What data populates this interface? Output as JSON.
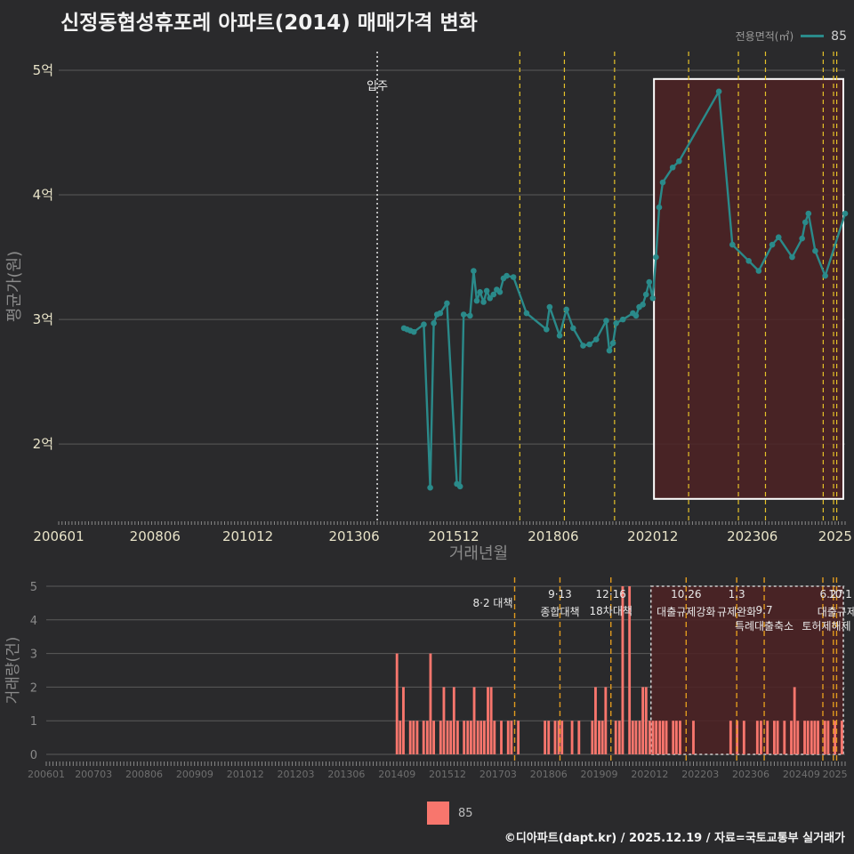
{
  "title": "신정동협성휴포레 아파트(2014) 매매가격 변화",
  "footer": "©디아파트(dapt.kr) / 2025.12.19 / 자료=국토교통부 실거래가",
  "legend": {
    "title": "전용면적(㎡)",
    "series": "85",
    "bottom_label": "85"
  },
  "colors": {
    "line": "#2a8a8a",
    "bar": "#f8766d",
    "background": "#2a2a2c",
    "grid": "#5a5a5a",
    "highlight": "#4e2225",
    "policy": "#e6c229"
  },
  "chart_data": [
    {
      "type": "line",
      "title": "신정동협성휴포레 아파트(2014) 매매가격 변화",
      "xlabel": "거래년월",
      "ylabel": "평균가(원)",
      "x_unit": "year-fraction",
      "xlim": [
        2006.0,
        2025.75
      ],
      "ylim": [
        1.38,
        5.15
      ],
      "x_ticks": [
        {
          "x": 2006.0,
          "label": "200601"
        },
        {
          "x": 2008.42,
          "label": "200806"
        },
        {
          "x": 2010.75,
          "label": "201012"
        },
        {
          "x": 2013.42,
          "label": "201306"
        },
        {
          "x": 2015.92,
          "label": "201512"
        },
        {
          "x": 2018.42,
          "label": "201806"
        },
        {
          "x": 2020.92,
          "label": "202012"
        },
        {
          "x": 2023.42,
          "label": "202306"
        },
        {
          "x": 2025.5,
          "label": "2025"
        }
      ],
      "y_ticks": [
        {
          "y": 2,
          "label": "2억"
        },
        {
          "y": 3,
          "label": "3억"
        },
        {
          "y": 4,
          "label": "4억"
        },
        {
          "y": 5,
          "label": "5억"
        }
      ],
      "move_in": {
        "x": 2014.0,
        "label": "입주"
      },
      "policy_lines": [
        2017.58,
        2018.7,
        2019.96,
        2021.82,
        2023.07,
        2023.75,
        2025.2,
        2025.46,
        2025.54
      ],
      "highlight": {
        "x0": 2020.95,
        "x1": 2025.75,
        "y0": 1.56,
        "y1": 4.93
      },
      "series": [
        {
          "name": "85",
          "x": [
            2014.67,
            2014.75,
            2014.83,
            2014.92,
            2015.17,
            2015.33,
            2015.42,
            2015.5,
            2015.58,
            2015.75,
            2016.0,
            2016.08,
            2016.17,
            2016.33,
            2016.42,
            2016.5,
            2016.58,
            2016.67,
            2016.75,
            2016.83,
            2016.92,
            2017.0,
            2017.08,
            2017.17,
            2017.25,
            2017.42,
            2017.75,
            2018.25,
            2018.33,
            2018.58,
            2018.75,
            2018.92,
            2019.17,
            2019.33,
            2019.5,
            2019.75,
            2019.83,
            2019.92,
            2020.0,
            2020.17,
            2020.42,
            2020.5,
            2020.58,
            2020.67,
            2020.75,
            2020.83,
            2020.92,
            2021.0,
            2021.08,
            2021.17,
            2021.42,
            2021.58,
            2022.58,
            2022.92,
            2023.33,
            2023.58,
            2023.92,
            2024.08,
            2024.42,
            2024.67,
            2024.75,
            2024.83,
            2025.0,
            2025.25,
            2025.75
          ],
          "y": [
            2.93,
            2.92,
            2.91,
            2.9,
            2.96,
            1.65,
            2.97,
            3.04,
            3.05,
            3.13,
            1.68,
            1.66,
            3.04,
            3.03,
            3.39,
            3.15,
            3.22,
            3.14,
            3.23,
            3.17,
            3.2,
            3.24,
            3.22,
            3.33,
            3.35,
            3.34,
            3.05,
            2.92,
            3.1,
            2.87,
            3.08,
            2.93,
            2.79,
            2.8,
            2.84,
            2.99,
            2.75,
            2.81,
            2.97,
            3.0,
            3.05,
            3.03,
            3.1,
            3.12,
            3.2,
            3.3,
            3.17,
            3.5,
            3.9,
            4.1,
            4.22,
            4.27,
            4.83,
            3.6,
            3.47,
            3.39,
            3.6,
            3.66,
            3.5,
            3.65,
            3.78,
            3.85,
            3.55,
            3.35,
            3.85
          ]
        }
      ]
    },
    {
      "type": "bar",
      "xlabel": "",
      "ylabel": "거래량(건)",
      "x_unit": "year-fraction",
      "xlim": [
        2006.0,
        2025.75
      ],
      "ylim": [
        0,
        5
      ],
      "y_ticks": [
        0,
        1,
        2,
        3,
        4,
        5
      ],
      "x_ticks": [
        {
          "x": 2006.0,
          "label": "200601"
        },
        {
          "x": 2007.17,
          "label": "200703"
        },
        {
          "x": 2008.42,
          "label": "200806"
        },
        {
          "x": 2009.67,
          "label": "200909"
        },
        {
          "x": 2010.92,
          "label": "201012"
        },
        {
          "x": 2012.17,
          "label": "201203"
        },
        {
          "x": 2013.42,
          "label": "201306"
        },
        {
          "x": 2014.67,
          "label": "201409"
        },
        {
          "x": 2015.92,
          "label": "201512"
        },
        {
          "x": 2017.17,
          "label": "201703"
        },
        {
          "x": 2018.42,
          "label": "201806"
        },
        {
          "x": 2019.67,
          "label": "201909"
        },
        {
          "x": 2020.92,
          "label": "202012"
        },
        {
          "x": 2022.17,
          "label": "202203"
        },
        {
          "x": 2023.42,
          "label": "202306"
        },
        {
          "x": 2024.67,
          "label": "202409"
        },
        {
          "x": 2025.5,
          "label": "2025"
        }
      ],
      "policies": [
        {
          "x": 2017.58,
          "date": "8·2 대책",
          "name": ""
        },
        {
          "x": 2018.7,
          "date": "9·13",
          "name": "종합대책"
        },
        {
          "x": 2019.96,
          "date": "12·16",
          "name": "18차대책"
        },
        {
          "x": 2021.82,
          "date": "10.26",
          "name": "대출규제강화"
        },
        {
          "x": 2023.07,
          "date": "1.3",
          "name": "규제완화"
        },
        {
          "x": 2023.75,
          "date": "9.7",
          "name": "특례대출축소"
        },
        {
          "x": 2025.2,
          "date": "",
          "name": "토허제해제"
        },
        {
          "x": 2025.46,
          "date": "6.27",
          "name": "대출규제"
        },
        {
          "x": 2025.54,
          "date": "10.1",
          "name": ""
        }
      ],
      "highlight": {
        "x0": 2020.95,
        "x1": 2025.75,
        "y0": 0,
        "y1": 5
      },
      "categories_x": [
        2014.67,
        2014.75,
        2014.83,
        2015.0,
        2015.08,
        2015.17,
        2015.33,
        2015.42,
        2015.5,
        2015.58,
        2015.75,
        2015.83,
        2015.92,
        2016.0,
        2016.08,
        2016.17,
        2016.33,
        2016.42,
        2016.5,
        2016.58,
        2016.67,
        2016.75,
        2016.83,
        2016.92,
        2017.0,
        2017.08,
        2017.25,
        2017.42,
        2017.5,
        2017.67,
        2018.33,
        2018.42,
        2018.58,
        2018.67,
        2018.75,
        2019.0,
        2019.17,
        2019.5,
        2019.58,
        2019.67,
        2019.75,
        2019.83,
        2020.08,
        2020.17,
        2020.25,
        2020.42,
        2020.5,
        2020.58,
        2020.67,
        2020.75,
        2020.83,
        2020.92,
        2021.0,
        2021.08,
        2021.17,
        2021.25,
        2021.33,
        2021.5,
        2021.58,
        2021.67,
        2022.0,
        2022.92,
        2023.08,
        2023.25,
        2023.58,
        2023.67,
        2023.83,
        2024.0,
        2024.08,
        2024.25,
        2024.42,
        2024.5,
        2024.58,
        2024.75,
        2024.83,
        2024.92,
        2025.0,
        2025.08,
        2025.25,
        2025.33,
        2025.5,
        2025.67
      ],
      "values": [
        3,
        1,
        2,
        1,
        1,
        1,
        1,
        1,
        3,
        1,
        1,
        2,
        1,
        1,
        2,
        1,
        1,
        1,
        1,
        2,
        1,
        1,
        1,
        2,
        2,
        1,
        1,
        1,
        1,
        1,
        1,
        1,
        1,
        1,
        1,
        1,
        1,
        1,
        2,
        1,
        1,
        2,
        1,
        1,
        5,
        5,
        1,
        1,
        1,
        2,
        2,
        1,
        1,
        1,
        1,
        1,
        1,
        1,
        1,
        1,
        1,
        1,
        1,
        1,
        1,
        1,
        1,
        1,
        1,
        1,
        1,
        2,
        1,
        1,
        1,
        1,
        1,
        1,
        1,
        1,
        1,
        1
      ]
    }
  ]
}
